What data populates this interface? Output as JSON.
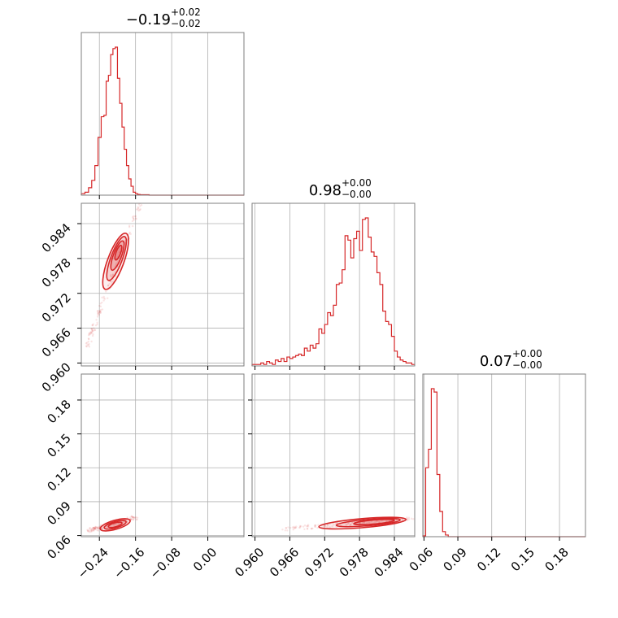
{
  "chart_data": {
    "type": "corner",
    "color": "#d62728",
    "grid": true,
    "parameters": [
      {
        "title_value": "−0.19",
        "title_plus": "+0.02",
        "title_minus": "−0.02",
        "range": [
          -0.28,
          0.08
        ],
        "ticks": [
          {
            "value": -0.24,
            "label": "−0.24"
          },
          {
            "value": -0.16,
            "label": "−0.16"
          },
          {
            "value": -0.08,
            "label": "−0.08"
          },
          {
            "value": 0.0,
            "label": "0.00"
          }
        ],
        "histogram": {
          "edges": [
            -0.28,
            -0.272,
            -0.264,
            -0.257,
            -0.25,
            -0.243,
            -0.236,
            -0.23,
            -0.225,
            -0.22,
            -0.215,
            -0.21,
            -0.205,
            -0.2,
            -0.195,
            -0.19,
            -0.185,
            -0.18,
            -0.175,
            -0.17,
            -0.165,
            -0.16,
            -0.155,
            -0.15,
            -0.13,
            0.08
          ],
          "counts": [
            0.01,
            0.02,
            0.05,
            0.1,
            0.2,
            0.39,
            0.53,
            0.54,
            0.77,
            0.81,
            0.95,
            0.99,
            1.0,
            0.79,
            0.62,
            0.46,
            0.31,
            0.2,
            0.11,
            0.06,
            0.02,
            0.01,
            0.005,
            0.003,
            0.0
          ]
        }
      },
      {
        "title_value": "0.98",
        "title_plus": "+0.00",
        "title_minus": "−0.00",
        "range": [
          0.9595,
          0.9875
        ],
        "ticks": [
          {
            "value": 0.96,
            "label": "0.960"
          },
          {
            "value": 0.966,
            "label": "0.966"
          },
          {
            "value": 0.972,
            "label": "0.972"
          },
          {
            "value": 0.978,
            "label": "0.978"
          },
          {
            "value": 0.984,
            "label": "0.984"
          }
        ],
        "histogram": {
          "edges": [
            0.9595,
            0.961,
            0.9615,
            0.962,
            0.9625,
            0.963,
            0.9635,
            0.964,
            0.9645,
            0.965,
            0.9655,
            0.966,
            0.9665,
            0.967,
            0.9675,
            0.968,
            0.9685,
            0.969,
            0.9695,
            0.97,
            0.9705,
            0.971,
            0.9715,
            0.972,
            0.9725,
            0.973,
            0.9735,
            0.974,
            0.9745,
            0.975,
            0.9755,
            0.976,
            0.9765,
            0.977,
            0.9775,
            0.978,
            0.9785,
            0.979,
            0.9795,
            0.98,
            0.9805,
            0.981,
            0.9815,
            0.982,
            0.9825,
            0.983,
            0.9835,
            0.984,
            0.9845,
            0.985,
            0.9855,
            0.986,
            0.9865,
            0.987,
            0.9875
          ],
          "counts": [
            0.01,
            0.02,
            0.01,
            0.03,
            0.02,
            0.01,
            0.04,
            0.03,
            0.05,
            0.03,
            0.06,
            0.05,
            0.06,
            0.07,
            0.08,
            0.07,
            0.12,
            0.1,
            0.14,
            0.12,
            0.15,
            0.25,
            0.22,
            0.28,
            0.36,
            0.34,
            0.41,
            0.55,
            0.56,
            0.65,
            0.88,
            0.85,
            0.73,
            0.86,
            0.91,
            0.78,
            0.99,
            1.0,
            0.87,
            0.77,
            0.74,
            0.63,
            0.55,
            0.37,
            0.3,
            0.28,
            0.2,
            0.1,
            0.06,
            0.04,
            0.03,
            0.02,
            0.02,
            0.01
          ]
        }
      },
      {
        "title_value": "0.07",
        "title_plus": "+0.00",
        "title_minus": "−0.00",
        "range": [
          0.059,
          0.203
        ],
        "ticks": [
          {
            "value": 0.06,
            "label": "0.06"
          },
          {
            "value": 0.09,
            "label": "0.09"
          },
          {
            "value": 0.12,
            "label": "0.12"
          },
          {
            "value": 0.15,
            "label": "0.15"
          },
          {
            "value": 0.18,
            "label": "0.18"
          }
        ],
        "histogram": {
          "edges": [
            0.059,
            0.0615,
            0.064,
            0.0665,
            0.069,
            0.0715,
            0.074,
            0.0765,
            0.079,
            0.0815,
            0.203
          ],
          "counts": [
            0.005,
            0.41,
            0.52,
            0.88,
            0.86,
            0.37,
            0.15,
            0.03,
            0.01,
            0.0
          ]
        }
      }
    ],
    "pairs": [
      {
        "x_param": 0,
        "y_param": 1,
        "scatter_line": {
          "x": [
            -0.268,
            -0.15
          ],
          "y": [
            0.9628,
            0.9875
          ]
        },
        "contours": [
          {
            "center": [
              -0.204,
              0.9775
            ],
            "half_length": 0.023,
            "half_width": 0.0014
          },
          {
            "center": [
              -0.202,
              0.978
            ],
            "half_length": 0.018,
            "half_width": 0.001
          },
          {
            "center": [
              -0.2,
              0.9785
            ],
            "half_length": 0.012,
            "half_width": 0.0007
          },
          {
            "center": [
              -0.198,
              0.979
            ],
            "half_length": 0.006,
            "half_width": 0.0004
          }
        ]
      },
      {
        "x_param": 0,
        "y_param": 2,
        "scatter_line": {
          "x": [
            -0.265,
            -0.16
          ],
          "y": [
            0.064,
            0.076
          ]
        },
        "contours": [
          {
            "center": [
              -0.205,
              0.0695
            ],
            "half_length": 0.033,
            "half_width": 0.004
          },
          {
            "center": [
              -0.205,
              0.0695
            ],
            "half_length": 0.024,
            "half_width": 0.0028
          },
          {
            "center": [
              -0.205,
              0.0695
            ],
            "half_length": 0.015,
            "half_width": 0.0018
          }
        ]
      },
      {
        "x_param": 1,
        "y_param": 2,
        "scatter_line": {
          "x": [
            0.9645,
            0.9875
          ],
          "y": [
            0.0655,
            0.0755
          ]
        },
        "contours": [
          {
            "center": [
              0.9785,
              0.071
            ],
            "half_length": 0.0075,
            "half_width": 0.004
          },
          {
            "center": [
              0.9795,
              0.0715
            ],
            "half_length": 0.0055,
            "half_width": 0.0028
          },
          {
            "center": [
              0.9805,
              0.072
            ],
            "half_length": 0.0035,
            "half_width": 0.0018
          }
        ]
      }
    ]
  }
}
